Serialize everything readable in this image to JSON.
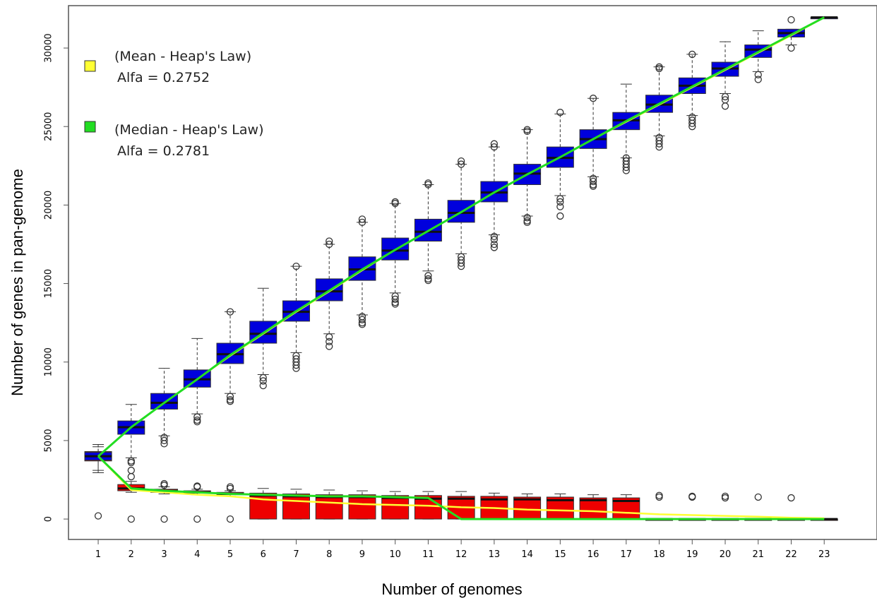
{
  "chart_data": {
    "type": "boxplot",
    "title": "",
    "xlabel": "Number of genomes",
    "ylabel": "Number of genes in pan-genome",
    "xlim": [
      0.1,
      24.6
    ],
    "ylim": [
      -1300,
      32700
    ],
    "x_ticks": [
      "1",
      "2",
      "3",
      "4",
      "5",
      "6",
      "7",
      "8",
      "9",
      "10",
      "11",
      "12",
      "13",
      "14",
      "15",
      "16",
      "17",
      "18",
      "19",
      "20",
      "21",
      "22",
      "23"
    ],
    "y_ticks": [
      "0",
      "5000",
      "10000",
      "15000",
      "20000",
      "25000",
      "30000"
    ],
    "grid": false,
    "legend": {
      "placement": "top-left",
      "entries": [
        {
          "line1": "(Mean - Heap's Law)",
          "line2": "Alfa = 0.2752",
          "color": "#ffff33"
        },
        {
          "line1": "(Median - Heap's Law)",
          "line2": "Alfa = 0.2781",
          "color": "#22dd22"
        }
      ]
    },
    "colors": {
      "pan_box": "#0000dd",
      "core_box": "#ee0000",
      "mean_line": "#ffff33",
      "median_line": "#22dd22"
    },
    "pan_boxes": [
      {
        "x": 1,
        "low": 2950,
        "q1": 3750,
        "median": 4000,
        "q3": 4250,
        "high": 4750,
        "outliers": []
      },
      {
        "x": 2,
        "low": 3900,
        "q1": 5400,
        "median": 5850,
        "q3": 6250,
        "high": 7300,
        "outliers": [
          3700,
          3600
        ]
      },
      {
        "x": 3,
        "low": 5300,
        "q1": 7000,
        "median": 7400,
        "q3": 8000,
        "high": 9600,
        "outliers": [
          5200,
          5000,
          4800
        ]
      },
      {
        "x": 4,
        "low": 6700,
        "q1": 8400,
        "median": 8900,
        "q3": 9500,
        "high": 11500,
        "outliers": [
          6500,
          6300,
          6200
        ]
      },
      {
        "x": 5,
        "low": 8000,
        "q1": 9900,
        "median": 10500,
        "q3": 11200,
        "high": 13200,
        "outliers": [
          13200,
          7800,
          7600,
          7500
        ]
      },
      {
        "x": 6,
        "low": 9200,
        "q1": 11200,
        "median": 11800,
        "q3": 12600,
        "high": 14700,
        "outliers": [
          9000,
          8800,
          8500
        ]
      },
      {
        "x": 7,
        "low": 10600,
        "q1": 12600,
        "median": 13200,
        "q3": 13900,
        "high": 16100,
        "outliers": [
          16100,
          10400,
          10200,
          10000,
          9800,
          9600
        ]
      },
      {
        "x": 8,
        "low": 11800,
        "q1": 13900,
        "median": 14500,
        "q3": 15300,
        "high": 17500,
        "outliers": [
          17700,
          17500,
          11600,
          11300,
          11000
        ]
      },
      {
        "x": 9,
        "low": 13000,
        "q1": 15200,
        "median": 15900,
        "q3": 16700,
        "high": 18900,
        "outliers": [
          19100,
          18900,
          12900,
          12700,
          12500,
          12400
        ]
      },
      {
        "x": 10,
        "low": 14400,
        "q1": 16500,
        "median": 17100,
        "q3": 17900,
        "high": 20100,
        "outliers": [
          20200,
          20100,
          14200,
          14000,
          13800,
          13700
        ]
      },
      {
        "x": 11,
        "low": 15800,
        "q1": 17700,
        "median": 18300,
        "q3": 19100,
        "high": 21300,
        "outliers": [
          21400,
          21300,
          15500,
          15300,
          15200
        ]
      },
      {
        "x": 12,
        "low": 16900,
        "q1": 18900,
        "median": 19500,
        "q3": 20300,
        "high": 22600,
        "outliers": [
          22800,
          22600,
          16700,
          16500,
          16300,
          16100
        ]
      },
      {
        "x": 13,
        "low": 18100,
        "q1": 20200,
        "median": 20800,
        "q3": 21500,
        "high": 23700,
        "outliers": [
          23900,
          23700,
          18000,
          17800,
          17500,
          17300
        ]
      },
      {
        "x": 14,
        "low": 19300,
        "q1": 21300,
        "median": 22000,
        "q3": 22600,
        "high": 24800,
        "outliers": [
          24800,
          24700,
          19200,
          19000,
          18900
        ]
      },
      {
        "x": 15,
        "low": 20600,
        "q1": 22400,
        "median": 23000,
        "q3": 23700,
        "high": 25800,
        "outliers": [
          25900,
          20400,
          20200,
          19900,
          19300
        ]
      },
      {
        "x": 16,
        "low": 21800,
        "q1": 23600,
        "median": 24200,
        "q3": 24800,
        "high": 26800,
        "outliers": [
          26800,
          21700,
          21500,
          21300,
          21200
        ]
      },
      {
        "x": 17,
        "low": 23000,
        "q1": 24800,
        "median": 25400,
        "q3": 25900,
        "high": 27700,
        "outliers": [
          23000,
          22800,
          22600,
          22400,
          22200
        ]
      },
      {
        "x": 18,
        "low": 24400,
        "q1": 25900,
        "median": 26400,
        "q3": 27000,
        "high": 28800,
        "outliers": [
          28800,
          28700,
          24300,
          24100,
          23900,
          23700
        ]
      },
      {
        "x": 19,
        "low": 25700,
        "q1": 27100,
        "median": 27600,
        "q3": 28100,
        "high": 29600,
        "outliers": [
          29600,
          25600,
          25400,
          25200,
          25000
        ]
      },
      {
        "x": 20,
        "low": 27100,
        "q1": 28200,
        "median": 28700,
        "q3": 29100,
        "high": 30400,
        "outliers": [
          26900,
          26700,
          26300
        ]
      },
      {
        "x": 21,
        "low": 28500,
        "q1": 29400,
        "median": 29900,
        "q3": 30200,
        "high": 31100,
        "outliers": [
          28300,
          28000
        ]
      },
      {
        "x": 22,
        "low": 30200,
        "q1": 30700,
        "median": 30950,
        "q3": 31200,
        "high": 31200,
        "outliers": [
          31800,
          30000
        ]
      },
      {
        "x": 23,
        "low": 31950,
        "q1": 31950,
        "median": 31950,
        "q3": 31950,
        "high": 31950,
        "outliers": []
      }
    ],
    "core_boxes": [
      {
        "x": 1,
        "low": 3100,
        "q1": 3700,
        "median": 4000,
        "q3": 4300,
        "high": 4600,
        "outliers": [
          200
        ]
      },
      {
        "x": 2,
        "low": 1700,
        "q1": 1800,
        "median": 1950,
        "q3": 2200,
        "high": 2400,
        "outliers": [
          3100,
          2700,
          0
        ]
      },
      {
        "x": 3,
        "low": 1600,
        "q1": 1700,
        "median": 1800,
        "q3": 1900,
        "high": 2050,
        "outliers": [
          2250,
          2150,
          0
        ]
      },
      {
        "x": 4,
        "low": 1550,
        "q1": 1650,
        "median": 1700,
        "q3": 1800,
        "high": 1900,
        "outliers": [
          2100,
          2050,
          0
        ]
      },
      {
        "x": 5,
        "low": 1450,
        "q1": 1550,
        "median": 1600,
        "q3": 1700,
        "high": 1800,
        "outliers": [
          2050,
          1950,
          0
        ]
      },
      {
        "x": 6,
        "low": 0,
        "q1": 0,
        "median": 1500,
        "q3": 1650,
        "high": 1950,
        "outliers": []
      },
      {
        "x": 7,
        "low": 0,
        "q1": 0,
        "median": 1450,
        "q3": 1600,
        "high": 1900,
        "outliers": []
      },
      {
        "x": 8,
        "low": 0,
        "q1": 0,
        "median": 1400,
        "q3": 1550,
        "high": 1850,
        "outliers": []
      },
      {
        "x": 9,
        "low": 0,
        "q1": 0,
        "median": 1400,
        "q3": 1550,
        "high": 1800,
        "outliers": []
      },
      {
        "x": 10,
        "low": 0,
        "q1": 0,
        "median": 1350,
        "q3": 1500,
        "high": 1750,
        "outliers": []
      },
      {
        "x": 11,
        "low": 0,
        "q1": 0,
        "median": 1300,
        "q3": 1500,
        "high": 1750,
        "outliers": []
      },
      {
        "x": 12,
        "low": 0,
        "q1": 0,
        "median": 1300,
        "q3": 1450,
        "high": 1750,
        "outliers": []
      },
      {
        "x": 13,
        "low": 0,
        "q1": 0,
        "median": 1250,
        "q3": 1450,
        "high": 1650,
        "outliers": []
      },
      {
        "x": 14,
        "low": 0,
        "q1": 0,
        "median": 1250,
        "q3": 1400,
        "high": 1600,
        "outliers": []
      },
      {
        "x": 15,
        "low": 0,
        "q1": 0,
        "median": 1200,
        "q3": 1400,
        "high": 1600,
        "outliers": []
      },
      {
        "x": 16,
        "low": 0,
        "q1": 0,
        "median": 1200,
        "q3": 1350,
        "high": 1550,
        "outliers": []
      },
      {
        "x": 17,
        "low": 0,
        "q1": 0,
        "median": 1150,
        "q3": 1350,
        "high": 1550,
        "outliers": []
      },
      {
        "x": 18,
        "low": 0,
        "q1": 0,
        "median": 0,
        "q3": 0,
        "high": 0,
        "outliers": [
          1500,
          1400
        ]
      },
      {
        "x": 19,
        "low": 0,
        "q1": 0,
        "median": 0,
        "q3": 0,
        "high": 0,
        "outliers": [
          1450,
          1400
        ]
      },
      {
        "x": 20,
        "low": 0,
        "q1": 0,
        "median": 0,
        "q3": 0,
        "high": 0,
        "outliers": [
          1450,
          1350
        ]
      },
      {
        "x": 21,
        "low": 0,
        "q1": 0,
        "median": 0,
        "q3": 0,
        "high": 0,
        "outliers": [
          1400
        ]
      },
      {
        "x": 22,
        "low": 0,
        "q1": 0,
        "median": 0,
        "q3": 0,
        "high": 0,
        "outliers": [
          1350
        ]
      },
      {
        "x": 23,
        "low": 0,
        "q1": 0,
        "median": 0,
        "q3": 0,
        "high": 0,
        "outliers": []
      }
    ],
    "series": [
      {
        "key": "mean_pan",
        "color": "#ffff33",
        "x": [
          1,
          2,
          3,
          4,
          5,
          6,
          7,
          8,
          9,
          10,
          11,
          12,
          13,
          14,
          15,
          16,
          17,
          18,
          19,
          20,
          21,
          22,
          23
        ],
        "values": [
          4000,
          5850,
          7400,
          8900,
          10400,
          11800,
          13200,
          14500,
          15850,
          17150,
          18350,
          19550,
          20800,
          21950,
          23050,
          24200,
          25300,
          26400,
          27500,
          28600,
          29700,
          30800,
          31950
        ]
      },
      {
        "key": "median_pan",
        "color": "#22dd22",
        "x": [
          1,
          2,
          3,
          4,
          5,
          6,
          7,
          8,
          9,
          10,
          11,
          12,
          13,
          14,
          15,
          16,
          17,
          18,
          19,
          20,
          21,
          22,
          23
        ],
        "values": [
          4000,
          5850,
          7400,
          8900,
          10450,
          11850,
          13250,
          14550,
          15900,
          17150,
          18350,
          19550,
          20800,
          21950,
          23050,
          24200,
          25350,
          26450,
          27550,
          28650,
          29750,
          30850,
          31950
        ]
      },
      {
        "key": "mean_core",
        "color": "#ffff33",
        "x": [
          1,
          2,
          3,
          4,
          5,
          6,
          7,
          8,
          9,
          10,
          11,
          12,
          13,
          14,
          15,
          16,
          17,
          18,
          19,
          20,
          21,
          22,
          23
        ],
        "values": [
          4000,
          1850,
          1700,
          1550,
          1450,
          1250,
          1150,
          1050,
          950,
          900,
          850,
          750,
          700,
          600,
          550,
          500,
          400,
          300,
          250,
          200,
          150,
          80,
          50
        ]
      },
      {
        "key": "median_core",
        "color": "#22dd22",
        "x": [
          1,
          2,
          3,
          4,
          5,
          6,
          7,
          8,
          9,
          10,
          11,
          12,
          13,
          14,
          15,
          16,
          17,
          18,
          19,
          20,
          21,
          22,
          23
        ],
        "values": [
          4000,
          1950,
          1800,
          1700,
          1600,
          1550,
          1500,
          1450,
          1450,
          1400,
          1350,
          0,
          0,
          0,
          0,
          0,
          0,
          0,
          0,
          0,
          0,
          0,
          0
        ]
      }
    ]
  }
}
